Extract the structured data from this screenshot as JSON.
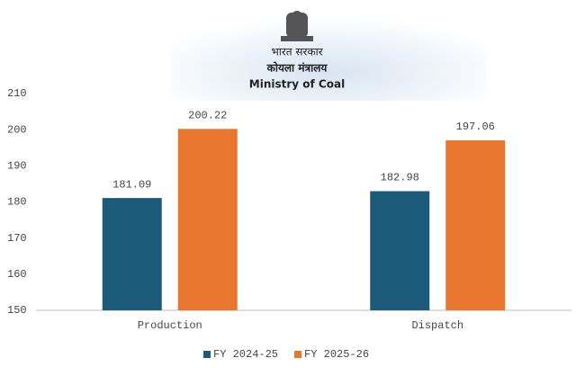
{
  "header": {
    "emblem_caption": "भारत सरकार",
    "ministry_hindi": "कोयला मंत्रालय",
    "ministry_english": "Ministry of Coal"
  },
  "chart_data": {
    "type": "bar",
    "categories": [
      "Production",
      "Dispatch"
    ],
    "series": [
      {
        "name": "FY 2024-25",
        "color": "#1b5a78",
        "values": [
          181.09,
          182.98
        ]
      },
      {
        "name": "FY 2025-26",
        "color": "#e8762e",
        "values": [
          200.22,
          197.06
        ]
      }
    ],
    "ylim": [
      150,
      210
    ],
    "yticks": [
      150,
      160,
      170,
      180,
      190,
      200,
      210
    ],
    "grid": false,
    "legend": "bottom"
  }
}
